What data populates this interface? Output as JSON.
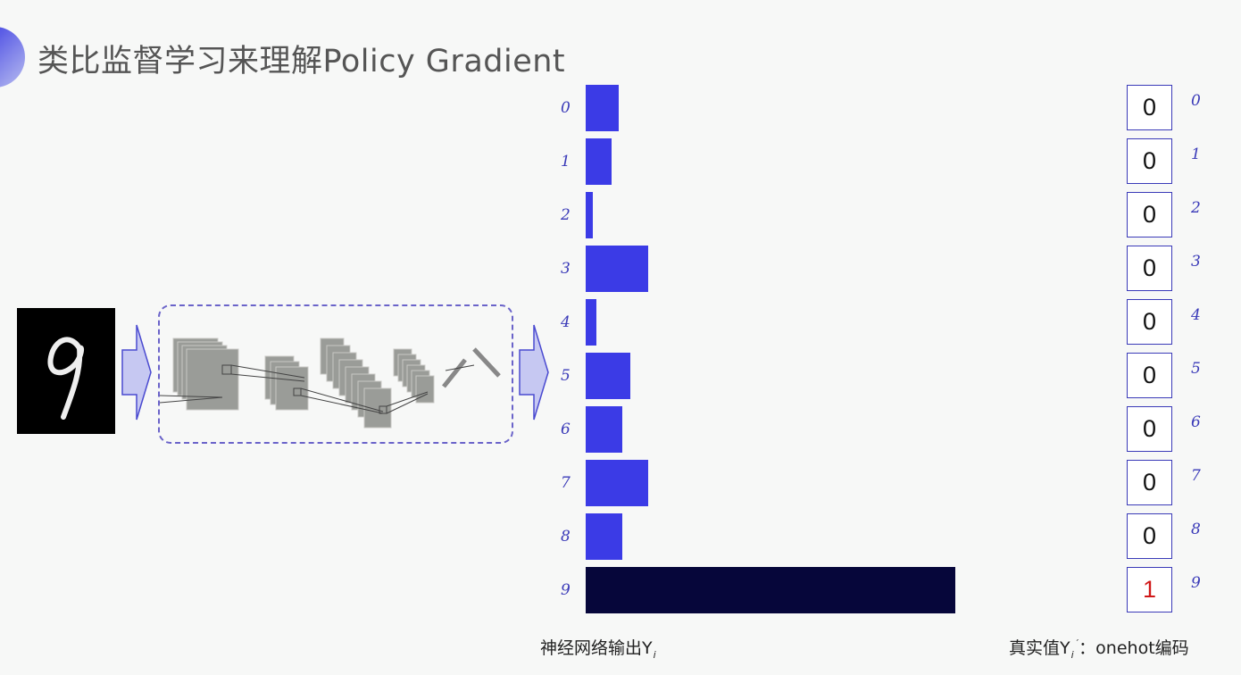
{
  "title": "类比监督学习来理解Policy Gradient",
  "input_digit": "9",
  "colors": {
    "bar": "#3b3be6",
    "bar_highlight": "#06063a",
    "label": "#3a3ab8",
    "onehot_hot": "#d01818"
  },
  "chart_data": {
    "type": "bar",
    "orientation": "horizontal",
    "categories": [
      "0",
      "1",
      "2",
      "3",
      "4",
      "5",
      "6",
      "7",
      "8",
      "9"
    ],
    "values": [
      0.09,
      0.07,
      0.02,
      0.17,
      0.03,
      0.12,
      0.1,
      0.17,
      0.1,
      1.0
    ],
    "xlabel": "神经网络输出Y_i",
    "highlight_index": 9
  },
  "onehot": {
    "values": [
      "0",
      "0",
      "0",
      "0",
      "0",
      "0",
      "0",
      "0",
      "0",
      "1"
    ],
    "labels": [
      "0",
      "1",
      "2",
      "3",
      "4",
      "5",
      "6",
      "7",
      "8",
      "9"
    ]
  },
  "captions": {
    "output": "神经网络输出Y",
    "output_sub": "i",
    "truth_prefix": "真实值Y",
    "truth_sub": "i",
    "truth_sup": "′",
    "truth_suffix": "：onehot编码"
  }
}
